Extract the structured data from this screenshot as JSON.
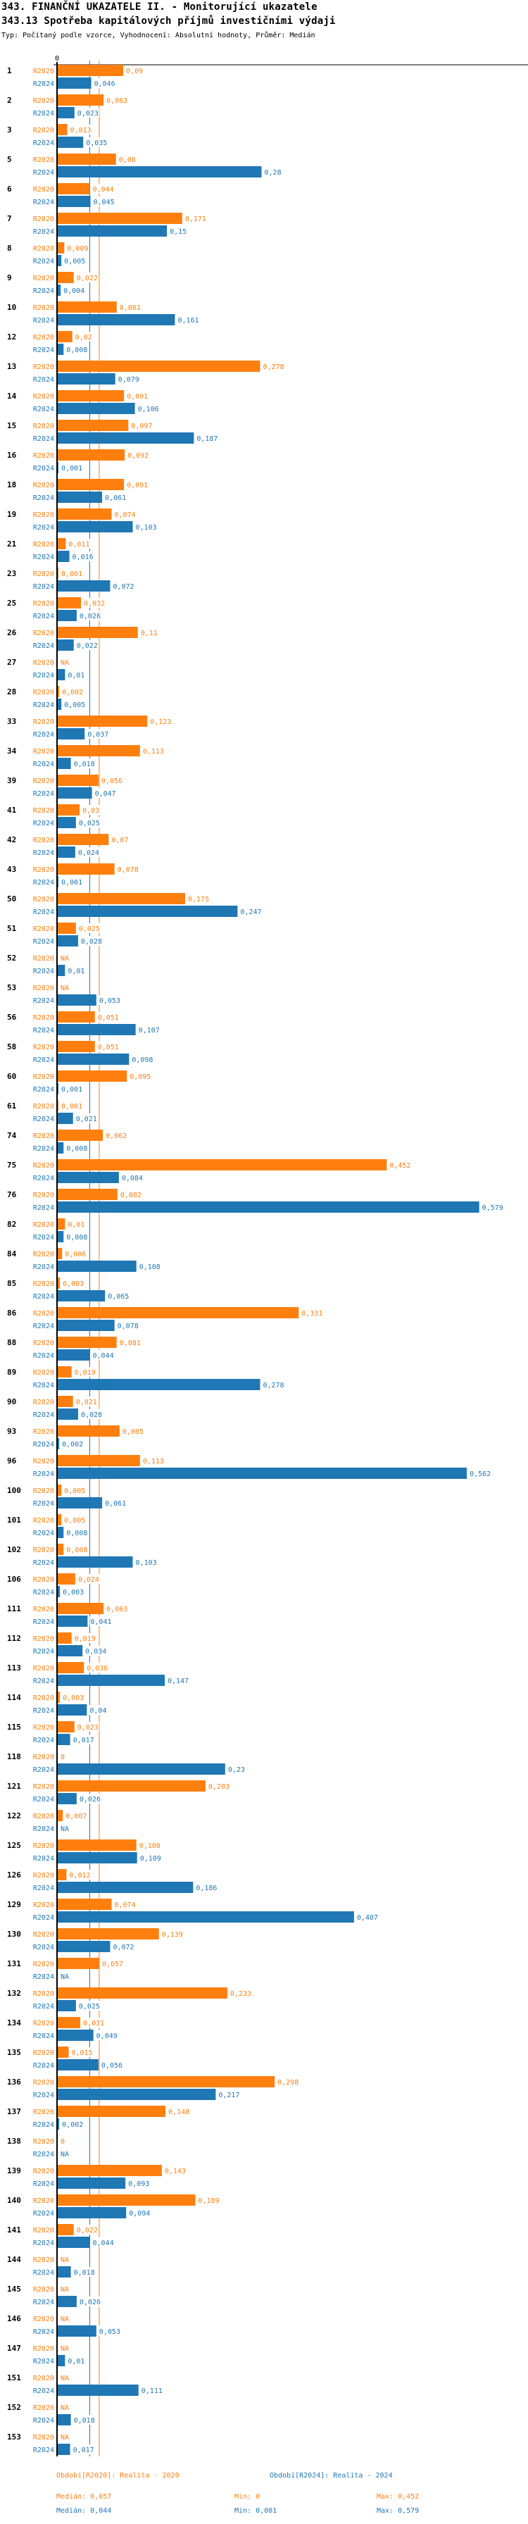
{
  "header": {
    "title": "343. FINANČNÍ UKAZATELE II. - Monitorující ukazatele",
    "subtitle": "343.13 Spotřeba kapitálových příjmů investičními výdaji",
    "meta": "Typ: Počítaný podle vzorce, Vyhodnocení: Absolutní hodnoty, Průměr: Medián"
  },
  "colors": {
    "R2020": "#ff7f0e",
    "R2024": "#1f77b4",
    "axis": "#000000"
  },
  "chart_data": {
    "type": "bar",
    "orientation": "horizontal",
    "title": "343.13 Spotřeba kapitálových příjmů investičními výdaji",
    "xlabel": "",
    "ylabel": "",
    "x_tick_labels": [
      "0"
    ],
    "xlim": [
      0,
      0.6
    ],
    "grid": false,
    "decimal_separator": ",",
    "na_label": "NA",
    "categories": [
      "1",
      "2",
      "3",
      "5",
      "6",
      "7",
      "8",
      "9",
      "10",
      "12",
      "13",
      "14",
      "15",
      "16",
      "18",
      "19",
      "21",
      "23",
      "25",
      "26",
      "27",
      "28",
      "33",
      "34",
      "39",
      "41",
      "42",
      "43",
      "50",
      "51",
      "52",
      "53",
      "56",
      "58",
      "60",
      "61",
      "74",
      "75",
      "76",
      "82",
      "84",
      "85",
      "86",
      "88",
      "89",
      "90",
      "93",
      "96",
      "100",
      "101",
      "102",
      "106",
      "111",
      "112",
      "113",
      "114",
      "115",
      "118",
      "121",
      "122",
      "125",
      "126",
      "129",
      "130",
      "131",
      "132",
      "134",
      "135",
      "136",
      "137",
      "138",
      "139",
      "140",
      "141",
      "144",
      "145",
      "146",
      "147",
      "151",
      "152",
      "153"
    ],
    "series": [
      {
        "name": "R2020",
        "legend": "Období[R2020]: Realita - 2020",
        "values": [
          0.09,
          0.063,
          0.013,
          0.08,
          0.044,
          0.171,
          0.009,
          0.022,
          0.081,
          0.02,
          0.278,
          0.091,
          0.097,
          0.092,
          0.091,
          0.074,
          0.011,
          0.001,
          0.032,
          0.11,
          null,
          0.002,
          0.123,
          0.113,
          0.056,
          0.03,
          0.07,
          0.078,
          0.175,
          0.025,
          null,
          null,
          0.051,
          0.051,
          0.095,
          0.001,
          0.062,
          0.452,
          0.082,
          0.01,
          0.006,
          0.003,
          0.331,
          0.081,
          0.019,
          0.021,
          0.085,
          0.113,
          0.005,
          0.005,
          0.008,
          0.024,
          0.063,
          0.019,
          0.036,
          0.003,
          0.023,
          0,
          0.203,
          0.007,
          0.108,
          0.012,
          0.074,
          0.139,
          0.057,
          0.233,
          0.031,
          0.015,
          0.298,
          0.148,
          0,
          0.143,
          0.189,
          0.022,
          null,
          null,
          null,
          null,
          null,
          null,
          null
        ],
        "median": 0.057,
        "min": 0,
        "max": 0.452
      },
      {
        "name": "R2024",
        "legend": "Období[R2024]: Realita - 2024",
        "values": [
          0.046,
          0.023,
          0.035,
          0.28,
          0.045,
          0.15,
          0.005,
          0.004,
          0.161,
          0.008,
          0.079,
          0.106,
          0.187,
          0.001,
          0.061,
          0.103,
          0.016,
          0.072,
          0.026,
          0.022,
          0.01,
          0.005,
          0.037,
          0.018,
          0.047,
          0.025,
          0.024,
          0.001,
          0.247,
          0.028,
          0.01,
          0.053,
          0.107,
          0.098,
          0.001,
          0.021,
          0.008,
          0.084,
          0.579,
          0.008,
          0.108,
          0.065,
          0.078,
          0.044,
          0.278,
          0.028,
          0.002,
          0.562,
          0.061,
          0.008,
          0.103,
          0.003,
          0.041,
          0.034,
          0.147,
          0.04,
          0.017,
          0.23,
          0.026,
          null,
          0.109,
          0.186,
          0.407,
          0.072,
          null,
          0.025,
          0.049,
          0.056,
          0.217,
          0.002,
          null,
          0.093,
          0.094,
          0.044,
          0.018,
          0.026,
          0.053,
          0.01,
          0.111,
          0.018,
          0.017
        ],
        "median": 0.044,
        "min": 0.001,
        "max": 0.579
      }
    ],
    "reference_lines": [
      {
        "series": "R2020",
        "type": "median",
        "value": 0.057
      },
      {
        "series": "R2024",
        "type": "median",
        "value": 0.044
      }
    ],
    "legend_position": "bottom"
  },
  "footer": {
    "legend_r2020": "Období[R2020]: Realita - 2020",
    "legend_r2024": "Období[R2024]: Realita - 2024",
    "r2020_median": "Medián: 0,057",
    "r2020_min": "Min: 0",
    "r2020_max": "Max: 0,452",
    "r2024_median": "Medián: 0,044",
    "r2024_min": "Min: 0,001",
    "r2024_max": "Max: 0,579"
  }
}
